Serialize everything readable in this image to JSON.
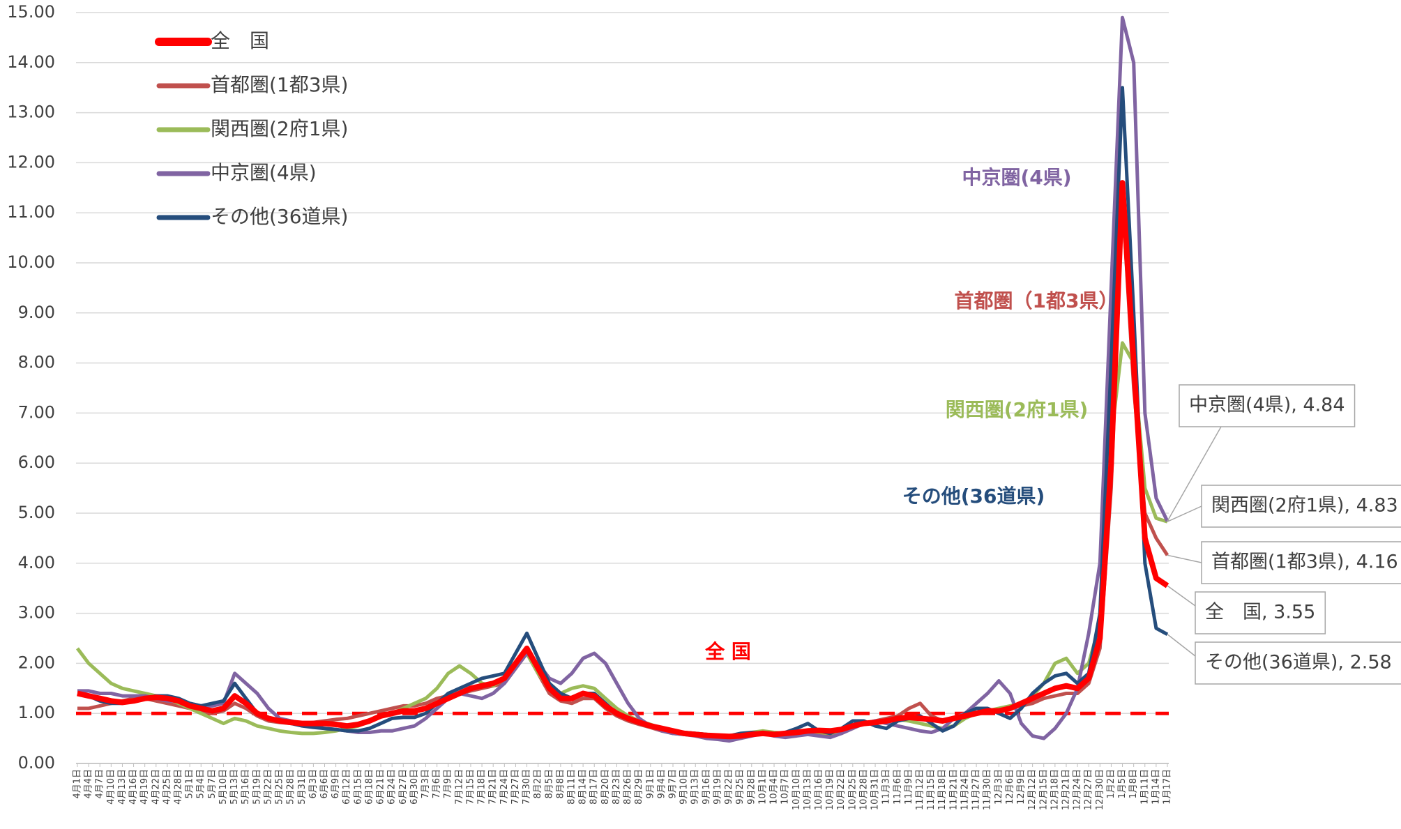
{
  "chart_data": {
    "type": "line",
    "categories": [
      "4月1日",
      "4月4日",
      "4月7日",
      "4月10日",
      "4月13日",
      "4月16日",
      "4月19日",
      "4月22日",
      "4月25日",
      "4月28日",
      "5月1日",
      "5月4日",
      "5月7日",
      "5月10日",
      "5月13日",
      "5月16日",
      "5月19日",
      "5月22日",
      "5月25日",
      "5月28日",
      "5月31日",
      "6月3日",
      "6月6日",
      "6月9日",
      "6月12日",
      "6月15日",
      "6月18日",
      "6月21日",
      "6月24日",
      "6月27日",
      "6月30日",
      "7月3日",
      "7月6日",
      "7月9日",
      "7月12日",
      "7月15日",
      "7月18日",
      "7月21日",
      "7月24日",
      "7月27日",
      "7月30日",
      "8月2日",
      "8月5日",
      "8月8日",
      "8月11日",
      "8月14日",
      "8月17日",
      "8月20日",
      "8月23日",
      "8月26日",
      "8月29日",
      "9月1日",
      "9月4日",
      "9月7日",
      "9月10日",
      "9月13日",
      "9月16日",
      "9月19日",
      "9月22日",
      "9月25日",
      "9月28日",
      "10月1日",
      "10月4日",
      "10月7日",
      "10月10日",
      "10月13日",
      "10月16日",
      "10月19日",
      "10月22日",
      "10月25日",
      "10月28日",
      "10月31日",
      "11月3日",
      "11月6日",
      "11月9日",
      "11月12日",
      "11月15日",
      "11月18日",
      "11月21日",
      "11月24日",
      "11月27日",
      "11月30日",
      "12月3日",
      "12月6日",
      "12月9日",
      "12月12日",
      "12月15日",
      "12月18日",
      "12月21日",
      "12月24日",
      "12月27日",
      "12月30日",
      "1月2日",
      "1月5日",
      "1月8日",
      "1月11日",
      "1月14日",
      "1月17日"
    ],
    "series": [
      {
        "name": "全　国",
        "color": "#ff0000",
        "annotation": "全 国",
        "end_label": "全　国, 3.55",
        "values": [
          1.4,
          1.35,
          1.3,
          1.25,
          1.22,
          1.25,
          1.3,
          1.32,
          1.3,
          1.25,
          1.15,
          1.1,
          1.05,
          1.1,
          1.35,
          1.2,
          1.0,
          0.9,
          0.85,
          0.82,
          0.8,
          0.8,
          0.8,
          0.78,
          0.75,
          0.78,
          0.85,
          0.95,
          1.0,
          1.05,
          1.05,
          1.1,
          1.2,
          1.3,
          1.4,
          1.5,
          1.55,
          1.6,
          1.7,
          2.0,
          2.3,
          1.9,
          1.5,
          1.3,
          1.3,
          1.4,
          1.35,
          1.15,
          1.0,
          0.9,
          0.82,
          0.75,
          0.7,
          0.65,
          0.6,
          0.58,
          0.56,
          0.55,
          0.54,
          0.55,
          0.58,
          0.6,
          0.58,
          0.6,
          0.62,
          0.65,
          0.66,
          0.65,
          0.68,
          0.75,
          0.8,
          0.82,
          0.85,
          0.9,
          0.92,
          0.9,
          0.88,
          0.85,
          0.9,
          0.95,
          1.0,
          1.05,
          1.05,
          1.1,
          1.2,
          1.3,
          1.4,
          1.5,
          1.55,
          1.5,
          1.7,
          2.5,
          6.0,
          11.6,
          8.0,
          4.5,
          3.7,
          3.55
        ]
      },
      {
        "name": "首都圏(1都3県)",
        "color": "#c0504d",
        "annotation": "首都圏（1都3県）",
        "end_label": "首都圏(1都3県), 4.16",
        "values": [
          1.1,
          1.1,
          1.15,
          1.2,
          1.25,
          1.3,
          1.3,
          1.25,
          1.2,
          1.15,
          1.1,
          1.05,
          1.0,
          1.05,
          1.2,
          1.1,
          0.95,
          0.85,
          0.82,
          0.8,
          0.8,
          0.82,
          0.85,
          0.88,
          0.9,
          0.95,
          1.0,
          1.05,
          1.1,
          1.15,
          1.15,
          1.2,
          1.3,
          1.35,
          1.4,
          1.45,
          1.5,
          1.55,
          1.6,
          1.9,
          2.2,
          1.8,
          1.4,
          1.25,
          1.2,
          1.3,
          1.3,
          1.1,
          0.95,
          0.85,
          0.78,
          0.72,
          0.65,
          0.6,
          0.58,
          0.56,
          0.55,
          0.54,
          0.53,
          0.55,
          0.58,
          0.6,
          0.58,
          0.58,
          0.6,
          0.62,
          0.6,
          0.58,
          0.6,
          0.7,
          0.8,
          0.85,
          0.9,
          0.95,
          1.1,
          1.2,
          0.95,
          0.85,
          0.9,
          0.95,
          1.0,
          1.05,
          1.05,
          1.1,
          1.15,
          1.2,
          1.3,
          1.35,
          1.4,
          1.4,
          1.6,
          2.3,
          5.5,
          11.3,
          7.5,
          5.0,
          4.5,
          4.16
        ]
      },
      {
        "name": "関西圏(2府1県)",
        "color": "#9bbb59",
        "annotation": "関西圏(2府1県)",
        "end_label": "関西圏(2府1県), 4.83",
        "values": [
          2.3,
          2.0,
          1.8,
          1.6,
          1.5,
          1.45,
          1.4,
          1.35,
          1.3,
          1.2,
          1.1,
          1.0,
          0.9,
          0.8,
          0.9,
          0.85,
          0.75,
          0.7,
          0.65,
          0.62,
          0.6,
          0.6,
          0.62,
          0.65,
          0.7,
          0.75,
          0.85,
          0.95,
          1.0,
          1.1,
          1.2,
          1.3,
          1.5,
          1.8,
          1.95,
          1.8,
          1.6,
          1.55,
          1.7,
          2.0,
          2.2,
          1.8,
          1.5,
          1.4,
          1.5,
          1.55,
          1.5,
          1.3,
          1.1,
          0.95,
          0.85,
          0.78,
          0.7,
          0.65,
          0.62,
          0.6,
          0.58,
          0.56,
          0.55,
          0.58,
          0.62,
          0.65,
          0.62,
          0.6,
          0.6,
          0.62,
          0.62,
          0.6,
          0.65,
          0.75,
          0.8,
          0.82,
          0.85,
          0.88,
          0.85,
          0.8,
          0.75,
          0.7,
          0.75,
          0.9,
          1.0,
          1.05,
          1.1,
          1.15,
          1.2,
          1.35,
          1.6,
          2.0,
          2.1,
          1.8,
          2.0,
          2.8,
          6.5,
          8.4,
          8.0,
          5.5,
          4.9,
          4.83
        ]
      },
      {
        "name": "中京圏(4県)",
        "color": "#8064a2",
        "annotation": "中京圏(4県)",
        "end_label": "中京圏(4県), 4.84",
        "values": [
          1.45,
          1.45,
          1.4,
          1.4,
          1.35,
          1.35,
          1.35,
          1.3,
          1.25,
          1.25,
          1.2,
          1.15,
          1.15,
          1.2,
          1.8,
          1.6,
          1.4,
          1.1,
          0.9,
          0.85,
          0.8,
          0.75,
          0.7,
          0.68,
          0.65,
          0.62,
          0.62,
          0.65,
          0.65,
          0.7,
          0.75,
          0.9,
          1.1,
          1.3,
          1.4,
          1.35,
          1.3,
          1.4,
          1.6,
          1.9,
          2.2,
          2.0,
          1.7,
          1.6,
          1.8,
          2.1,
          2.2,
          2.0,
          1.6,
          1.2,
          0.9,
          0.75,
          0.65,
          0.6,
          0.58,
          0.55,
          0.5,
          0.48,
          0.45,
          0.5,
          0.55,
          0.6,
          0.55,
          0.52,
          0.55,
          0.58,
          0.55,
          0.52,
          0.6,
          0.7,
          0.8,
          0.85,
          0.8,
          0.75,
          0.7,
          0.65,
          0.62,
          0.7,
          0.9,
          1.0,
          1.2,
          1.4,
          1.65,
          1.4,
          0.8,
          0.55,
          0.5,
          0.7,
          1.0,
          1.5,
          2.6,
          4.0,
          9.5,
          14.9,
          14.0,
          7.0,
          5.3,
          4.84
        ]
      },
      {
        "name": "その他(36道県)",
        "color": "#254d7c",
        "annotation": "その他(36道県)",
        "end_label": "その他(36道県), 2.58",
        "values": [
          1.4,
          1.35,
          1.25,
          1.2,
          1.2,
          1.25,
          1.3,
          1.35,
          1.35,
          1.3,
          1.2,
          1.15,
          1.2,
          1.25,
          1.6,
          1.3,
          1.0,
          0.9,
          0.85,
          0.8,
          0.75,
          0.72,
          0.7,
          0.68,
          0.65,
          0.65,
          0.7,
          0.8,
          0.9,
          0.92,
          0.92,
          1.0,
          1.2,
          1.4,
          1.5,
          1.6,
          1.7,
          1.75,
          1.8,
          2.2,
          2.6,
          2.1,
          1.6,
          1.4,
          1.3,
          1.4,
          1.4,
          1.2,
          1.0,
          0.9,
          0.8,
          0.75,
          0.7,
          0.65,
          0.62,
          0.6,
          0.58,
          0.55,
          0.55,
          0.6,
          0.62,
          0.6,
          0.58,
          0.62,
          0.7,
          0.8,
          0.65,
          0.6,
          0.7,
          0.85,
          0.85,
          0.75,
          0.7,
          0.85,
          0.9,
          0.95,
          0.8,
          0.65,
          0.75,
          1.0,
          1.1,
          1.1,
          1.0,
          0.9,
          1.1,
          1.4,
          1.6,
          1.75,
          1.8,
          1.6,
          1.8,
          3.0,
          8.0,
          13.5,
          9.0,
          4.0,
          2.7,
          2.58
        ]
      }
    ],
    "reference_line": {
      "value": 1,
      "color": "#ff0000"
    },
    "ylim": [
      0,
      15
    ],
    "yticks": [
      {
        "value": 0,
        "label": "0.00"
      },
      {
        "value": 1,
        "label": "1.00"
      },
      {
        "value": 2,
        "label": "2.00"
      },
      {
        "value": 3,
        "label": "3.00"
      },
      {
        "value": 4,
        "label": "4.00"
      },
      {
        "value": 5,
        "label": "5.00"
      },
      {
        "value": 6,
        "label": "6.00"
      },
      {
        "value": 7,
        "label": "7.00"
      },
      {
        "value": 8,
        "label": "8.00"
      },
      {
        "value": 9,
        "label": "9.00"
      },
      {
        "value": 10,
        "label": "10.00"
      },
      {
        "value": 11,
        "label": "11.00"
      },
      {
        "value": 12,
        "label": "12.00"
      },
      {
        "value": 13,
        "label": "13.00"
      },
      {
        "value": 14,
        "label": "14.00"
      },
      {
        "value": 15,
        "label": "15.00"
      }
    ],
    "grid": true,
    "legend": "upper left"
  }
}
